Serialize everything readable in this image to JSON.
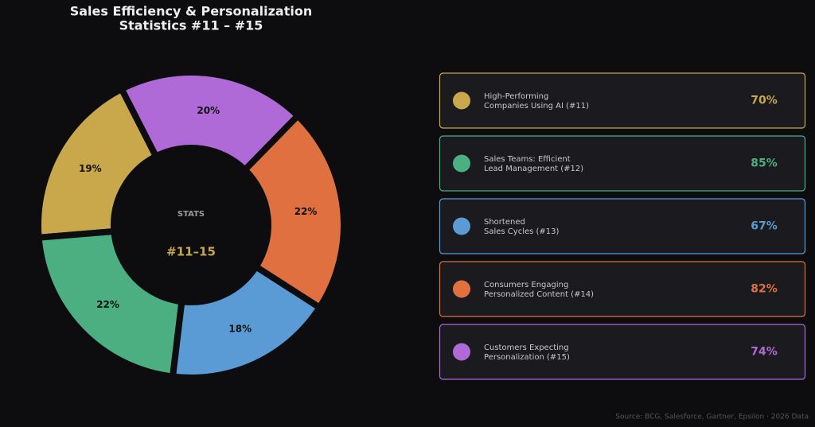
{
  "chart_data": {
    "type": "pie",
    "title": [
      "Sales Efficiency & Personalization",
      "Statistics #11 – #15"
    ],
    "center_label": "STATS",
    "center_value": "#11–15",
    "values": [
      19,
      22,
      18,
      22,
      20
    ],
    "value_labels": [
      "19%",
      "22%",
      "18%",
      "22%",
      "20%"
    ],
    "colors": [
      "#c9a84c",
      "#4caf82",
      "#5b9bd5",
      "#e07040",
      "#b06ad8"
    ]
  },
  "cards": {
    "items": [
      {
        "label": [
          "High-Performing",
          "Companies Using AI (#11)"
        ],
        "value": 70,
        "value_label": "70%",
        "color": "#c9a84c"
      },
      {
        "label": [
          "Sales Teams: Efficient",
          "Lead Management (#12)"
        ],
        "value": 85,
        "value_label": "85%",
        "color": "#4caf82"
      },
      {
        "label": [
          "Shortened",
          "Sales Cycles (#13)"
        ],
        "value": 67,
        "value_label": "67%",
        "color": "#5b9bd5"
      },
      {
        "label": [
          "Consumers Engaging",
          "Personalized Content (#14)"
        ],
        "value": 82,
        "value_label": "82%",
        "color": "#e07040"
      },
      {
        "label": [
          "Customers Expecting",
          "Personalization (#15)"
        ],
        "value": 74,
        "value_label": "74%",
        "color": "#b06ad8"
      }
    ]
  },
  "footer": {
    "source": "Source: BCG, Salesforce, Gartner, Epsilon · 2026 Data"
  }
}
